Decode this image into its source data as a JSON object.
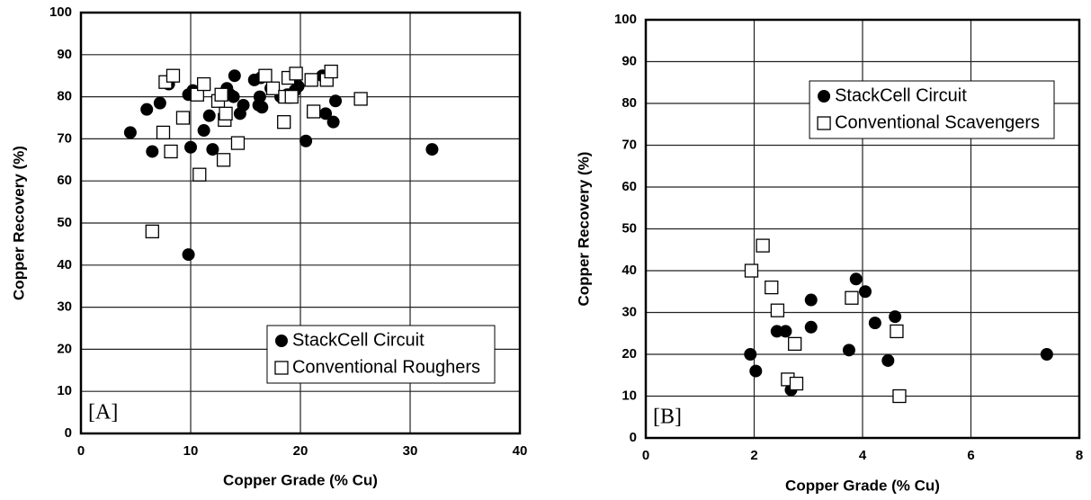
{
  "chart_data": [
    {
      "type": "scatter",
      "xlabel": "Copper Grade (% Cu)",
      "ylabel": "Copper Recovery (%)",
      "annotation": "[A]",
      "xlim": [
        0,
        40
      ],
      "ylim": [
        0,
        100
      ],
      "xticks": [
        0,
        10,
        20,
        30,
        40
      ],
      "yticks": [
        0,
        10,
        20,
        30,
        40,
        50,
        60,
        70,
        80,
        90,
        100
      ],
      "grid": true,
      "legend": "lower right",
      "series": [
        {
          "name": "StackCell Circuit",
          "color": "#000000",
          "marker": "circle",
          "x": [
            4.5,
            6,
            6.5,
            7.2,
            8,
            9.8,
            10,
            10.2,
            9.8,
            11.2,
            11.7,
            12,
            13.3,
            13.6,
            14,
            13.9,
            14.5,
            14.8,
            15.8,
            16.3,
            16.4,
            16.2,
            16.5,
            17.3,
            18.2,
            18.8,
            19.5,
            19.8,
            20.5,
            22,
            22.3,
            23,
            23.2,
            32
          ],
          "values": [
            71.5,
            77,
            67,
            78.5,
            83,
            80.5,
            68,
            81.5,
            42.5,
            72,
            75.5,
            67.5,
            82,
            80.5,
            85,
            80,
            76,
            78,
            84,
            80,
            84.5,
            78,
            77.5,
            82,
            80,
            80.5,
            81.5,
            82.5,
            69.5,
            85,
            76,
            74,
            79,
            67.5
          ]
        },
        {
          "name": "Conventional Roughers",
          "color": "#000000",
          "marker": "square",
          "x": [
            6.5,
            7.5,
            7.7,
            8.2,
            8.4,
            9.3,
            10.6,
            10.8,
            11.2,
            12.5,
            12.8,
            13,
            13.1,
            13.2,
            14.3,
            16.8,
            17.5,
            18.5,
            18.6,
            18.9,
            19.2,
            19.6,
            21,
            21.2,
            22.4,
            22.8,
            25.5
          ],
          "values": [
            48,
            71.5,
            83.5,
            67,
            85,
            75,
            80.5,
            61.5,
            83,
            79,
            80.5,
            65,
            74.5,
            76,
            69,
            85,
            82,
            74,
            80,
            84.5,
            80,
            85.5,
            84,
            76.5,
            84,
            86,
            79.5
          ]
        }
      ]
    },
    {
      "type": "scatter",
      "xlabel": "Copper Grade (% Cu)",
      "ylabel": "Copper Recovery (%)",
      "annotation": "[B]",
      "xlim": [
        0,
        8
      ],
      "ylim": [
        0,
        100
      ],
      "xticks": [
        0,
        2,
        4,
        6,
        8
      ],
      "yticks": [
        0,
        10,
        20,
        30,
        40,
        50,
        60,
        70,
        80,
        90,
        100
      ],
      "grid": true,
      "legend": "upper right",
      "series": [
        {
          "name": "StackCell Circuit",
          "color": "#000000",
          "marker": "circle",
          "x": [
            1.93,
            2.03,
            2.42,
            2.58,
            2.68,
            3.05,
            3.05,
            3.75,
            3.88,
            4.05,
            4.23,
            4.47,
            4.6,
            7.4
          ],
          "values": [
            20,
            16,
            25.5,
            25.5,
            11.5,
            33,
            26.5,
            21,
            38,
            35,
            27.5,
            18.5,
            29,
            20
          ]
        },
        {
          "name": "Conventional Scavengers",
          "color": "#000000",
          "marker": "square",
          "x": [
            1.95,
            2.16,
            2.32,
            2.43,
            2.62,
            2.75,
            2.78,
            3.8,
            4.63,
            4.68
          ],
          "values": [
            40,
            46,
            36,
            30.5,
            14,
            22.5,
            13,
            33.5,
            25.5,
            10
          ]
        }
      ]
    }
  ]
}
